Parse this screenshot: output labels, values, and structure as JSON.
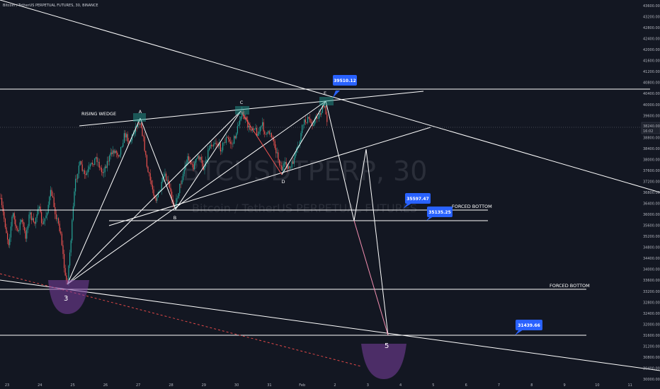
{
  "header": {
    "title": "Bitcoin / TetherUS PERPETUAL FUTURES, 30, BINANCE"
  },
  "watermark": {
    "symbol": "BTCUSDTPERP, 30",
    "subtitle": "Bitcoin / TetherUS PERPETUAL FUTURES"
  },
  "colors": {
    "background": "#131722",
    "up_candle": "#26a69a",
    "down_candle": "#ef5350",
    "lines": "#ffffff",
    "callout": "#2962ff",
    "bowl": "#7b3fa0",
    "dashed_red": "#e04848"
  },
  "chart_data": {
    "type": "candlestick",
    "yticks": [
      43600,
      43200,
      42800,
      42400,
      42000,
      41600,
      41200,
      40800,
      40400,
      40000,
      39600,
      39200,
      38800,
      38400,
      38000,
      37600,
      37200,
      36800,
      36400,
      36000,
      35600,
      35200,
      34800,
      34400,
      34000,
      33600,
      33200,
      32800,
      32400,
      32000,
      31600,
      31200,
      30800,
      30400,
      30000
    ],
    "ytick_labels": [
      "43600.00",
      "43200.00",
      "42800.00",
      "42400.00",
      "42000.00",
      "41600.00",
      "41200.00",
      "40800.00",
      "40400.00",
      "40000.00",
      "39600.00",
      "39200.00",
      "38800.00",
      "38400.00",
      "38000.00",
      "37600.00",
      "37200.00",
      "36800.00",
      "36400.00",
      "36000.00",
      "35600.00",
      "35200.00",
      "34800.00",
      "34400.00",
      "34000.00",
      "33600.00",
      "33200.00",
      "32800.00",
      "32400.00",
      "32000.00",
      "31600.00",
      "31200.00",
      "30800.00",
      "30400.00",
      "30000.00"
    ],
    "xticks": [
      "23",
      "24",
      "25",
      "26",
      "27",
      "28",
      "29",
      "30",
      "31",
      "Feb",
      "2",
      "3",
      "4",
      "5",
      "6",
      "7",
      "8",
      "9",
      "10",
      "11"
    ],
    "price_label": {
      "price": "38240.00",
      "countdown": "16:02"
    },
    "labels": {
      "rising_wedge": "RISING WEDGE",
      "forced_bottom_1": "FORCED BOTTOM",
      "forced_bottom_2": "FORCED BOTTOM",
      "wave_3": "3",
      "wave_5": "5",
      "point_a": "A",
      "point_b": "B",
      "point_c": "C",
      "point_d": "D",
      "point_e": "E"
    },
    "callouts": [
      "39510.12",
      "35597.47",
      "35135.25",
      "31439.66"
    ],
    "levels": [
      39510.12,
      35597.47,
      35135.25,
      32900,
      31439.66
    ]
  }
}
